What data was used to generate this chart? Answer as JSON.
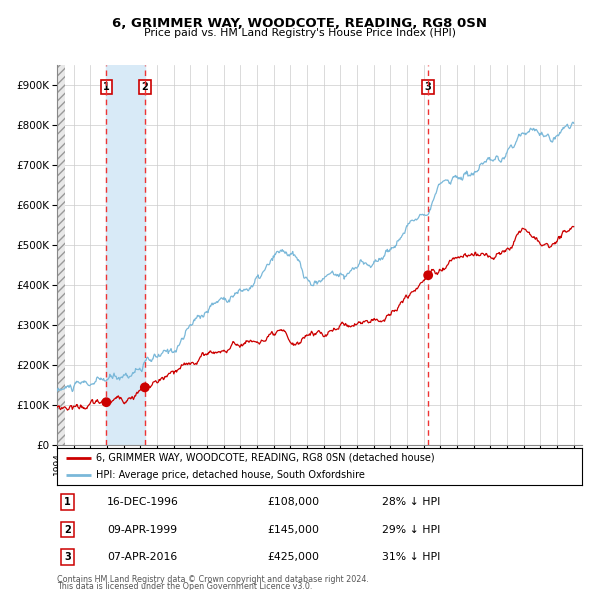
{
  "title": "6, GRIMMER WAY, WOODCOTE, READING, RG8 0SN",
  "subtitle": "Price paid vs. HM Land Registry's House Price Index (HPI)",
  "legend_line1": "6, GRIMMER WAY, WOODCOTE, READING, RG8 0SN (detached house)",
  "legend_line2": "HPI: Average price, detached house, South Oxfordshire",
  "footer1": "Contains HM Land Registry data © Crown copyright and database right 2024.",
  "footer2": "This data is licensed under the Open Government Licence v3.0.",
  "sales": [
    {
      "num": 1,
      "date": "16-DEC-1996",
      "date_num": 1996.96,
      "price": 108000,
      "pct": "28%",
      "direction": "↓"
    },
    {
      "num": 2,
      "date": "09-APR-1999",
      "date_num": 1999.27,
      "price": 145000,
      "pct": "29%",
      "direction": "↓"
    },
    {
      "num": 3,
      "date": "07-APR-2016",
      "date_num": 2016.27,
      "price": 425000,
      "pct": "31%",
      "direction": "↓"
    }
  ],
  "hpi_color": "#7ab8d9",
  "price_color": "#cc0000",
  "dot_color": "#cc0000",
  "vline_color": "#ee3333",
  "shade_color": "#d8eaf7",
  "grid_color": "#cccccc",
  "bg_color": "#ffffff",
  "ylim": [
    0,
    950000
  ],
  "yticks": [
    0,
    100000,
    200000,
    300000,
    400000,
    500000,
    600000,
    700000,
    800000,
    900000
  ],
  "xlim_start": 1994.0,
  "xlim_end": 2025.5,
  "box_color": "#cc0000",
  "box_facecolor": "#ffffff"
}
